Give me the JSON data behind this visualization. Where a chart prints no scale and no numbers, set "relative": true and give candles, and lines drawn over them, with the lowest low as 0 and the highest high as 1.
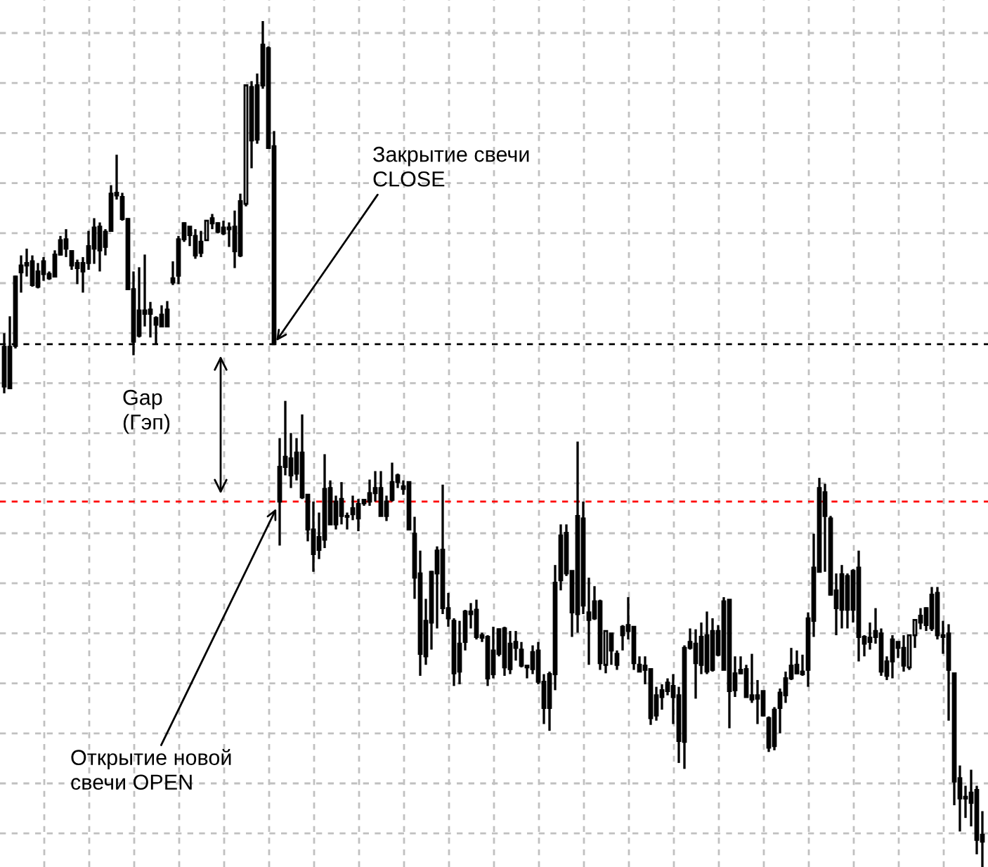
{
  "chart_data": {
    "type": "candlestick",
    "relative": true,
    "color": "#000000",
    "grid": true,
    "categories": [
      null,
      null,
      null,
      null,
      null,
      null,
      null,
      null,
      null,
      null,
      null,
      null,
      null,
      null,
      null,
      null,
      null,
      null,
      null,
      null,
      null,
      null,
      null,
      null,
      null,
      null,
      null,
      null,
      null,
      null,
      null,
      null,
      null,
      null,
      null,
      null,
      null,
      null,
      null,
      null,
      null,
      null,
      null,
      null,
      null,
      null,
      null,
      null,
      null,
      null,
      null,
      null,
      null,
      null,
      null,
      null,
      null,
      null,
      null,
      null,
      null,
      null,
      null,
      null,
      null,
      null,
      null,
      null,
      null,
      null,
      null,
      null,
      null,
      null,
      null,
      null,
      null,
      null,
      null,
      null,
      null,
      null,
      null,
      null,
      null,
      null,
      null,
      null,
      null,
      null,
      null,
      null,
      null,
      null,
      null,
      null,
      null,
      null,
      null,
      null,
      null,
      null,
      null,
      null,
      null,
      null,
      null,
      null,
      null,
      null,
      null,
      null,
      null,
      null,
      null,
      null,
      null,
      null,
      null,
      null,
      null,
      null,
      null,
      null,
      null,
      null,
      null,
      null,
      null,
      null,
      null,
      null,
      null,
      null,
      null,
      null,
      null,
      null,
      null,
      null,
      null,
      null,
      null,
      null,
      null,
      null,
      null,
      null,
      null,
      null,
      null,
      null,
      null,
      null,
      null,
      null,
      null,
      null,
      null,
      null,
      null,
      null,
      null,
      null,
      null,
      null,
      null,
      null,
      null,
      null,
      null,
      null,
      null,
      null,
      null
    ],
    "ohlc": [
      [
        0.615,
        0.631,
        0.56,
        0.568
      ],
      [
        0.566,
        0.651,
        0.565,
        0.615
      ],
      [
        0.616,
        0.699,
        0.613,
        0.698
      ],
      [
        0.703,
        0.723,
        0.679,
        0.711
      ],
      [
        0.714,
        0.731,
        0.698,
        0.711
      ],
      [
        0.716,
        0.723,
        0.686,
        0.688
      ],
      [
        0.686,
        0.714,
        0.684,
        0.704
      ],
      [
        0.716,
        0.721,
        0.693,
        0.701
      ],
      [
        0.701,
        0.704,
        0.694,
        0.696
      ],
      [
        0.698,
        0.729,
        0.698,
        0.724
      ],
      [
        0.724,
        0.746,
        0.723,
        0.741
      ],
      [
        0.742,
        0.754,
        0.721,
        0.731
      ],
      [
        0.728,
        0.729,
        0.706,
        0.711
      ],
      [
        0.714,
        0.718,
        0.689,
        0.708
      ],
      [
        0.704,
        0.721,
        0.679,
        0.714
      ],
      [
        0.714,
        0.752,
        0.706,
        0.734
      ],
      [
        0.731,
        0.767,
        0.713,
        0.756
      ],
      [
        0.757,
        0.762,
        0.704,
        0.729
      ],
      [
        0.733,
        0.754,
        0.723,
        0.751
      ],
      [
        0.752,
        0.806,
        0.751,
        0.796
      ],
      [
        0.797,
        0.842,
        0.789,
        0.794
      ],
      [
        0.792,
        0.797,
        0.764,
        0.766
      ],
      [
        0.766,
        0.767,
        0.683,
        0.683
      ],
      [
        0.683,
        0.704,
        0.605,
        0.621
      ],
      [
        0.628,
        0.709,
        0.626,
        0.658
      ],
      [
        0.658,
        0.724,
        0.639,
        0.654
      ],
      [
        0.659,
        0.668,
        0.626,
        0.654
      ],
      [
        0.649,
        0.651,
        0.618,
        0.641
      ],
      [
        0.639,
        0.664,
        0.638,
        0.653
      ],
      [
        0.639,
        0.669,
        0.639,
        0.659
      ],
      [
        0.691,
        0.716,
        0.688,
        0.696
      ],
      [
        0.699,
        0.746,
        0.689,
        0.742
      ],
      [
        0.742,
        0.762,
        0.739,
        0.761
      ],
      [
        0.757,
        0.757,
        0.734,
        0.747
      ],
      [
        0.746,
        0.754,
        0.719,
        0.723
      ],
      [
        0.726,
        0.752,
        0.721,
        0.739
      ],
      [
        0.741,
        0.764,
        0.741,
        0.764
      ],
      [
        0.767,
        0.772,
        0.754,
        0.761
      ],
      [
        0.761,
        0.762,
        0.749,
        0.751
      ],
      [
        0.749,
        0.764,
        0.747,
        0.756
      ],
      [
        0.756,
        0.762,
        0.733,
        0.754
      ],
      [
        0.757,
        0.776,
        0.708,
        0.728
      ],
      [
        0.723,
        0.796,
        0.721,
        0.787
      ],
      [
        0.784,
        0.924,
        0.781,
        0.924
      ],
      [
        0.922,
        0.929,
        0.826,
        0.859
      ],
      [
        0.86,
        0.938,
        0.855,
        0.924
      ],
      [
        0.924,
        1.0,
        0.92,
        0.972
      ],
      [
        0.968,
        0.97,
        0.849,
        0.85
      ],
      [
        0.852,
        0.87,
        0.618,
        0.618
      ],
      [
        0.432,
        0.507,
        0.38,
        0.473
      ],
      [
        0.473,
        0.551,
        0.463,
        0.485
      ],
      [
        0.483,
        0.513,
        0.448,
        0.463
      ],
      [
        0.465,
        0.507,
        0.457,
        0.49
      ],
      [
        0.49,
        0.535,
        0.435,
        0.437
      ],
      [
        0.44,
        0.44,
        0.385,
        0.399
      ],
      [
        0.399,
        0.432,
        0.349,
        0.37
      ],
      [
        0.375,
        0.419,
        0.364,
        0.39
      ],
      [
        0.387,
        0.488,
        0.377,
        0.447
      ],
      [
        0.448,
        0.457,
        0.405,
        0.405
      ],
      [
        0.405,
        0.439,
        0.399,
        0.432
      ],
      [
        0.435,
        0.455,
        0.405,
        0.415
      ],
      [
        0.415,
        0.419,
        0.399,
        0.414
      ],
      [
        0.424,
        0.439,
        0.41,
        0.417
      ],
      [
        0.412,
        0.435,
        0.397,
        0.429
      ],
      [
        0.434,
        0.435,
        0.427,
        0.43
      ],
      [
        0.432,
        0.458,
        0.427,
        0.442
      ],
      [
        0.442,
        0.468,
        0.432,
        0.448
      ],
      [
        0.448,
        0.468,
        0.415,
        0.415
      ],
      [
        0.415,
        0.439,
        0.409,
        0.432
      ],
      [
        0.434,
        0.478,
        0.432,
        0.455
      ],
      [
        0.463,
        0.465,
        0.448,
        0.455
      ],
      [
        0.447,
        0.457,
        0.44,
        0.45
      ],
      [
        0.455,
        0.455,
        0.399,
        0.399
      ],
      [
        0.394,
        0.414,
        0.317,
        0.342
      ],
      [
        0.347,
        0.374,
        0.226,
        0.252
      ],
      [
        0.249,
        0.317,
        0.239,
        0.291
      ],
      [
        0.289,
        0.35,
        0.257,
        0.349
      ],
      [
        0.347,
        0.379,
        0.282,
        0.374
      ],
      [
        0.375,
        0.452,
        0.299,
        0.306
      ],
      [
        0.306,
        0.324,
        0.284,
        0.294
      ],
      [
        0.291,
        0.294,
        0.214,
        0.229
      ],
      [
        0.231,
        0.291,
        0.216,
        0.264
      ],
      [
        0.266,
        0.304,
        0.256,
        0.302
      ],
      [
        0.302,
        0.312,
        0.282,
        0.299
      ],
      [
        0.304,
        0.316,
        0.269,
        0.272
      ],
      [
        0.271,
        0.277,
        0.266,
        0.274
      ],
      [
        0.272,
        0.274,
        0.214,
        0.223
      ],
      [
        0.228,
        0.284,
        0.223,
        0.256
      ],
      [
        0.252,
        0.282,
        0.249,
        0.281
      ],
      [
        0.282,
        0.284,
        0.226,
        0.236
      ],
      [
        0.234,
        0.279,
        0.228,
        0.264
      ],
      [
        0.266,
        0.279,
        0.244,
        0.259
      ],
      [
        0.257,
        0.266,
        0.236,
        0.238
      ],
      [
        0.238,
        0.239,
        0.223,
        0.236
      ],
      [
        0.234,
        0.262,
        0.228,
        0.254
      ],
      [
        0.256,
        0.266,
        0.216,
        0.219
      ],
      [
        0.219,
        0.228,
        0.169,
        0.188
      ],
      [
        0.188,
        0.231,
        0.161,
        0.228
      ],
      [
        0.228,
        0.357,
        0.209,
        0.336
      ],
      [
        0.339,
        0.405,
        0.327,
        0.392
      ],
      [
        0.395,
        0.405,
        0.344,
        0.347
      ],
      [
        0.35,
        0.35,
        0.272,
        0.301
      ],
      [
        0.299,
        0.503,
        0.277,
        0.415
      ],
      [
        0.412,
        0.432,
        0.299,
        0.309
      ],
      [
        0.301,
        0.342,
        0.239,
        0.292
      ],
      [
        0.294,
        0.332,
        0.292,
        0.314
      ],
      [
        0.314,
        0.316,
        0.233,
        0.241
      ],
      [
        0.239,
        0.279,
        0.229,
        0.279
      ],
      [
        0.276,
        0.276,
        0.239,
        0.256
      ],
      [
        0.252,
        0.256,
        0.233,
        0.239
      ],
      [
        0.274,
        0.286,
        0.256,
        0.284
      ],
      [
        0.279,
        0.319,
        0.269,
        0.286
      ],
      [
        0.284,
        0.284,
        0.233,
        0.241
      ],
      [
        0.239,
        0.249,
        0.231,
        0.231
      ],
      [
        0.233,
        0.249,
        0.216,
        0.238
      ],
      [
        0.234,
        0.234,
        0.168,
        0.176
      ],
      [
        0.179,
        0.213,
        0.173,
        0.203
      ],
      [
        0.201,
        0.216,
        0.186,
        0.209
      ],
      [
        0.208,
        0.223,
        0.203,
        0.218
      ],
      [
        0.214,
        0.228,
        0.169,
        0.201
      ],
      [
        0.203,
        0.213,
        0.123,
        0.149
      ],
      [
        0.148,
        0.262,
        0.116,
        0.259
      ],
      [
        0.259,
        0.282,
        0.257,
        0.266
      ],
      [
        0.264,
        0.281,
        0.199,
        0.241
      ],
      [
        0.239,
        0.289,
        0.228,
        0.272
      ],
      [
        0.274,
        0.302,
        0.228,
        0.231
      ],
      [
        0.233,
        0.294,
        0.231,
        0.279
      ],
      [
        0.279,
        0.286,
        0.249,
        0.251
      ],
      [
        0.233,
        0.319,
        0.233,
        0.314
      ],
      [
        0.316,
        0.316,
        0.164,
        0.208
      ],
      [
        0.209,
        0.249,
        0.201,
        0.229
      ],
      [
        0.233,
        0.249,
        0.228,
        0.229
      ],
      [
        0.234,
        0.239,
        0.201,
        0.201
      ],
      [
        0.198,
        0.252,
        0.194,
        0.203
      ],
      [
        0.203,
        0.221,
        0.169,
        0.199
      ],
      [
        0.208,
        0.208,
        0.178,
        0.179
      ],
      [
        0.176,
        0.178,
        0.136,
        0.141
      ],
      [
        0.143,
        0.189,
        0.138,
        0.186
      ],
      [
        0.188,
        0.211,
        0.158,
        0.206
      ],
      [
        0.203,
        0.231,
        0.194,
        0.223
      ],
      [
        0.223,
        0.259,
        0.221,
        0.238
      ],
      [
        0.239,
        0.256,
        0.228,
        0.229
      ],
      [
        0.228,
        0.251,
        0.226,
        0.231
      ],
      [
        0.233,
        0.301,
        0.213,
        0.294
      ],
      [
        0.291,
        0.394,
        0.272,
        0.354
      ],
      [
        0.349,
        0.46,
        0.349,
        0.448
      ],
      [
        0.443,
        0.453,
        0.349,
        0.415
      ],
      [
        0.412,
        0.415,
        0.321,
        0.322
      ],
      [
        0.327,
        0.347,
        0.274,
        0.306
      ],
      [
        0.304,
        0.357,
        0.282,
        0.346
      ],
      [
        0.344,
        0.347,
        0.282,
        0.304
      ],
      [
        0.304,
        0.352,
        0.289,
        0.35
      ],
      [
        0.354,
        0.374,
        0.243,
        0.272
      ],
      [
        0.272,
        0.274,
        0.249,
        0.264
      ],
      [
        0.266,
        0.289,
        0.257,
        0.271
      ],
      [
        0.272,
        0.306,
        0.264,
        0.279
      ],
      [
        0.276,
        0.282,
        0.226,
        0.231
      ],
      [
        0.226,
        0.249,
        0.221,
        0.243
      ],
      [
        0.243,
        0.274,
        0.223,
        0.269
      ],
      [
        0.266,
        0.266,
        0.247,
        0.259
      ],
      [
        0.259,
        0.274,
        0.231,
        0.238
      ],
      [
        0.236,
        0.274,
        0.233,
        0.274
      ],
      [
        0.274,
        0.292,
        0.259,
        0.292
      ],
      [
        0.289,
        0.306,
        0.281,
        0.297
      ],
      [
        0.306,
        0.307,
        0.279,
        0.286
      ],
      [
        0.282,
        0.331,
        0.279,
        0.322
      ],
      [
        0.324,
        0.331,
        0.269,
        0.274
      ],
      [
        0.274,
        0.291,
        0.252,
        0.272
      ],
      [
        0.276,
        0.287,
        0.173,
        0.233
      ],
      [
        0.229,
        0.229,
        0.073,
        0.101
      ],
      [
        0.105,
        0.12,
        0.042,
        0.081
      ],
      [
        0.083,
        0.096,
        0.058,
        0.081
      ],
      [
        0.076,
        0.115,
        0.048,
        0.088
      ],
      [
        0.091,
        0.096,
        0.015,
        0.032
      ],
      [
        0.03,
        0.066,
        0.0,
        0.038
      ]
    ],
    "ref_lines": [
      {
        "axis": "y",
        "value": 0.618,
        "color": "#000000",
        "line_style": "dashed"
      },
      {
        "axis": "y",
        "value": 0.432,
        "color": "#ff0000",
        "line_style": "dashed"
      }
    ],
    "annotations": [
      "Закрытие свечи\nCLOSE",
      "Gap\n(Гэп)",
      "Открытие новой\nсвечи OPEN"
    ]
  }
}
